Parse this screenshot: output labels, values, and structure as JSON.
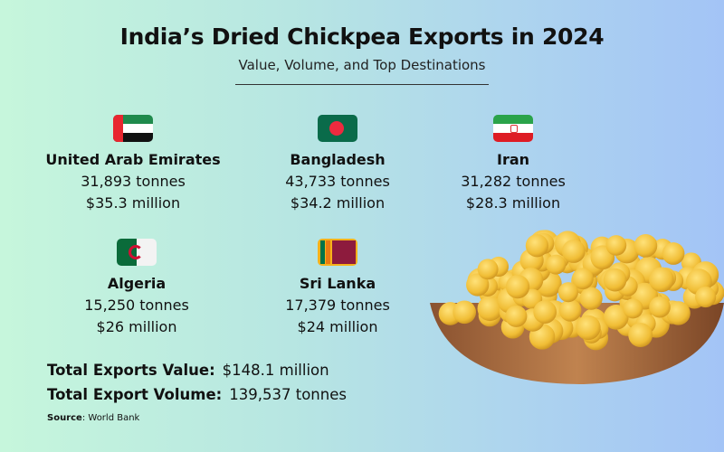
{
  "title": "India’s Dried Chickpea Exports in 2024",
  "subtitle": "Value, Volume, and Top Destinations",
  "countries": [
    {
      "name": "United Arab Emirates",
      "volume": "31,893 tonnes",
      "value": "$35.3 million",
      "flag": "uae-flag"
    },
    {
      "name": "Bangladesh",
      "volume": "43,733 tonnes",
      "value": "$34.2 million",
      "flag": "bangladesh-flag"
    },
    {
      "name": "Iran",
      "volume": "31,282 tonnes",
      "value": "$28.3 million",
      "flag": "iran-flag"
    },
    {
      "name": "Algeria",
      "volume": "15,250 tonnes",
      "value": "$26 million",
      "flag": "algeria-flag"
    },
    {
      "name": "Sri Lanka",
      "volume": "17,379 tonnes",
      "value": "$24 million",
      "flag": "sri-lanka-flag"
    }
  ],
  "totals": {
    "value_label": "Total Exports Value:",
    "value": "$148.1 million",
    "volume_label": "Total Export Volume:",
    "volume": "139,537 tonnes"
  },
  "source": {
    "label": "Source",
    "text": ": World Bank"
  },
  "colors": {
    "chickpea": "#f2c23e",
    "bowl": "#a0653a"
  }
}
